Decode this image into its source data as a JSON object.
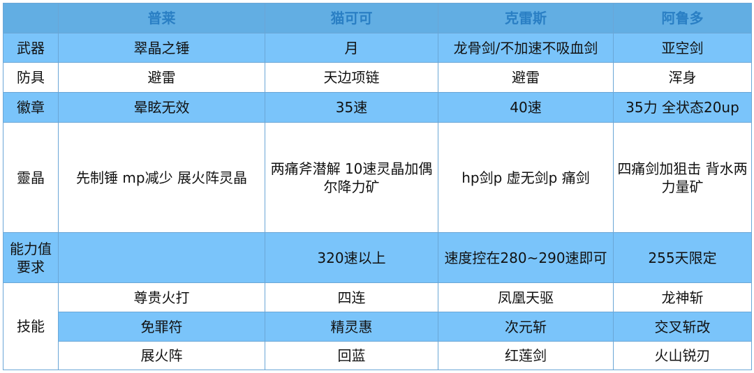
{
  "headers": [
    "",
    "普莱",
    "猫可可",
    "克雷斯",
    "阿鲁多"
  ],
  "rows": [
    {
      "label": "武器",
      "cells": [
        "翠晶之锤",
        "月",
        "龙骨剑/不加速不吸血剑",
        "亚空剑"
      ]
    },
    {
      "label": "防具",
      "cells": [
        "避雷",
        "天边项链",
        "避雷",
        "浑身"
      ]
    },
    {
      "label": "徽章",
      "cells": [
        "晕眩无效",
        "35速",
        "40速",
        "35力 全状态20up"
      ]
    },
    {
      "label": "靈晶",
      "cells": [
        "先制锤 mp减少 展火阵灵晶",
        "两痛斧潜解 10速灵晶加偶尔降力矿",
        "hp剑p 虚无剑p 痛剑",
        "四痛剑加狙击 背水两力量矿"
      ]
    },
    {
      "label": "能力值要求",
      "cells": [
        "",
        "320速以上",
        "速度控在280~290速即可",
        "255天限定"
      ]
    }
  ],
  "skills": {
    "label": "技能",
    "rows": [
      [
        "尊贵火打",
        "四连",
        "凤凰天驱",
        "龙神斩"
      ],
      [
        "免罪符",
        "精灵惠",
        "次元斩",
        "交叉斩改"
      ],
      [
        "展火阵",
        "回蓝",
        "红莲剑",
        "火山锐刃"
      ]
    ]
  },
  "colors": {
    "header_bg": "#62aee3",
    "header_text": "#2a7fc4",
    "row_blue": "#7ac4fa",
    "row_white": "#ffffff"
  }
}
